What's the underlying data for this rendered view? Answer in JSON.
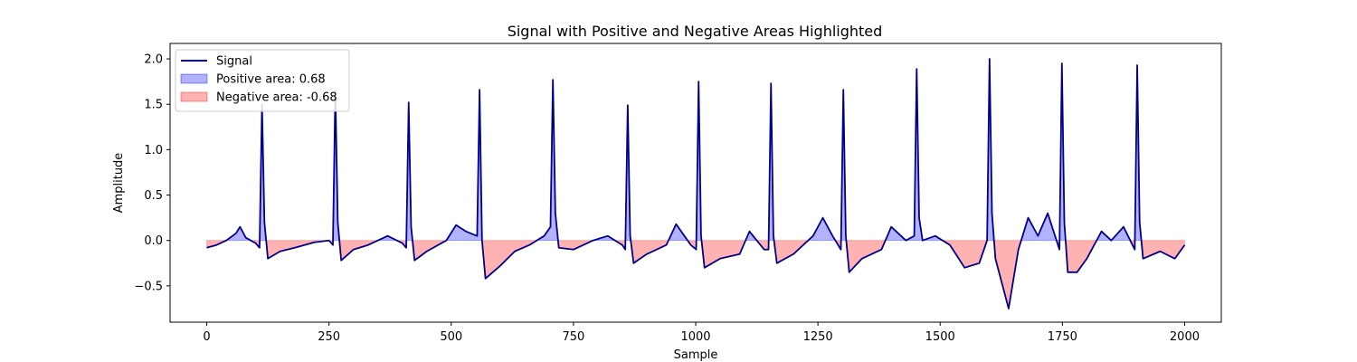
{
  "chart_data": {
    "type": "area",
    "title": "Signal with Positive and Negative Areas Highlighted",
    "xlabel": "Sample",
    "ylabel": "Amplitude",
    "xlim": [
      -75,
      2075
    ],
    "ylim": [
      -0.9,
      2.17
    ],
    "x_ticks": [
      0,
      250,
      500,
      750,
      1000,
      1250,
      1500,
      1750,
      2000
    ],
    "x_tick_labels": [
      "0",
      "250",
      "500",
      "750",
      "1000",
      "1250",
      "1500",
      "1750",
      "2000"
    ],
    "y_ticks": [
      -0.5,
      0.0,
      0.5,
      1.0,
      1.5,
      2.0
    ],
    "y_tick_labels": [
      "−0.5",
      "0.0",
      "0.5",
      "1.0",
      "1.5",
      "2.0"
    ],
    "grid": false,
    "legend_position": "upper left",
    "legend": [
      {
        "label": "Signal",
        "kind": "line",
        "color": "#00008b"
      },
      {
        "label": "Positive area: 0.68",
        "kind": "patch",
        "color": "#0000ff"
      },
      {
        "label": "Negative area: -0.68",
        "kind": "patch",
        "color": "#ff0000"
      }
    ],
    "series": [
      {
        "name": "Signal",
        "color": "#00008b",
        "x": [
          0,
          20,
          40,
          60,
          68,
          80,
          100,
          108,
          113,
          118,
          125,
          150,
          180,
          220,
          250,
          258,
          263,
          268,
          275,
          300,
          330,
          370,
          400,
          408,
          413,
          418,
          425,
          450,
          490,
          510,
          530,
          553,
          558,
          563,
          570,
          600,
          630,
          660,
          690,
          703,
          708,
          713,
          720,
          750,
          790,
          820,
          850,
          856,
          861,
          866,
          873,
          900,
          940,
          960,
          990,
          1001,
          1006,
          1011,
          1018,
          1050,
          1090,
          1110,
          1140,
          1149,
          1154,
          1159,
          1166,
          1200,
          1240,
          1260,
          1280,
          1297,
          1302,
          1307,
          1314,
          1340,
          1380,
          1400,
          1430,
          1447,
          1452,
          1457,
          1464,
          1490,
          1520,
          1550,
          1580,
          1596,
          1601,
          1606,
          1613,
          1640,
          1660,
          1680,
          1700,
          1720,
          1744,
          1749,
          1754,
          1761,
          1780,
          1800,
          1830,
          1850,
          1875,
          1898,
          1903,
          1908,
          1915,
          1950,
          1980,
          2000
        ],
        "y": [
          -0.08,
          -0.05,
          0.0,
          0.08,
          0.15,
          0.03,
          -0.03,
          -0.08,
          1.5,
          0.2,
          -0.2,
          -0.12,
          -0.08,
          -0.02,
          0.0,
          -0.05,
          1.65,
          0.2,
          -0.22,
          -0.1,
          -0.05,
          0.05,
          -0.03,
          -0.08,
          1.52,
          0.15,
          -0.22,
          -0.12,
          0.0,
          0.17,
          0.1,
          0.05,
          1.66,
          0.0,
          -0.42,
          -0.28,
          -0.12,
          -0.05,
          0.05,
          0.15,
          1.77,
          0.3,
          -0.08,
          -0.1,
          0.0,
          0.05,
          -0.05,
          -0.1,
          1.49,
          0.05,
          -0.25,
          -0.15,
          -0.05,
          0.18,
          -0.05,
          -0.1,
          1.75,
          0.05,
          -0.3,
          -0.2,
          -0.15,
          0.1,
          -0.1,
          -0.1,
          1.73,
          0.05,
          -0.25,
          -0.15,
          0.05,
          0.25,
          0.05,
          -0.1,
          1.66,
          0.05,
          -0.35,
          -0.2,
          -0.1,
          0.15,
          0.0,
          0.05,
          1.89,
          0.25,
          0.0,
          0.05,
          -0.05,
          -0.3,
          -0.25,
          0.0,
          2.0,
          0.3,
          -0.2,
          -0.75,
          -0.1,
          0.25,
          0.05,
          0.3,
          -0.1,
          1.95,
          0.2,
          -0.35,
          -0.35,
          -0.2,
          0.1,
          0.0,
          0.15,
          -0.1,
          1.93,
          0.2,
          -0.2,
          -0.12,
          -0.2,
          -0.05
        ]
      }
    ]
  }
}
